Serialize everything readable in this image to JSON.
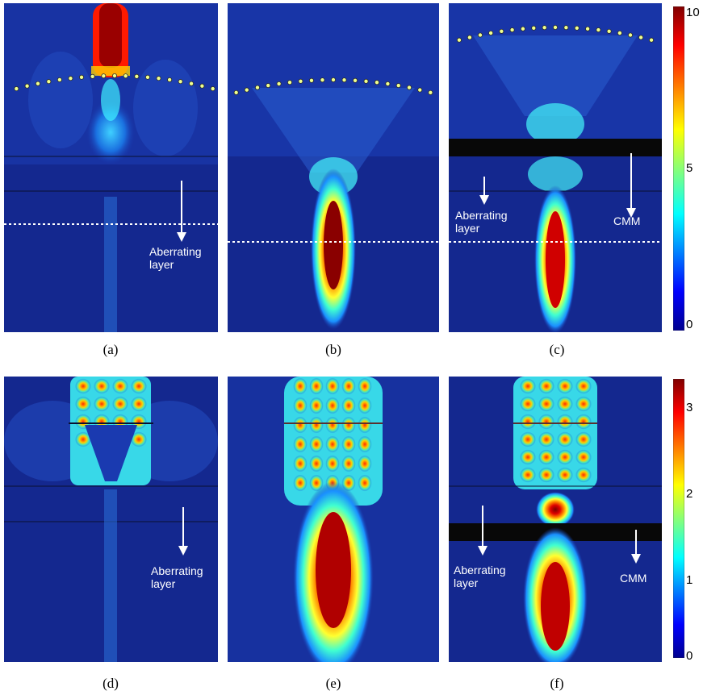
{
  "panels": [
    {
      "caption": "(a)",
      "annotation": "Aberrating\nlayer"
    },
    {
      "caption": "(b)"
    },
    {
      "caption": "(c)",
      "annotation_left": "Aberrating\nlayer",
      "annotation_right": "CMM"
    },
    {
      "caption": "(d)",
      "annotation": "Aberrating\nlayer"
    },
    {
      "caption": "(e)"
    },
    {
      "caption": "(f)",
      "annotation_left": "Aberrating\nlayer",
      "annotation_right": "CMM"
    }
  ],
  "colorbar_top": {
    "ticks": [
      "10",
      "5",
      "0"
    ],
    "range": [
      0,
      10
    ]
  },
  "colorbar_bottom": {
    "ticks": [
      "3",
      "2",
      "1",
      "0"
    ],
    "range": [
      0,
      3.3
    ]
  }
}
